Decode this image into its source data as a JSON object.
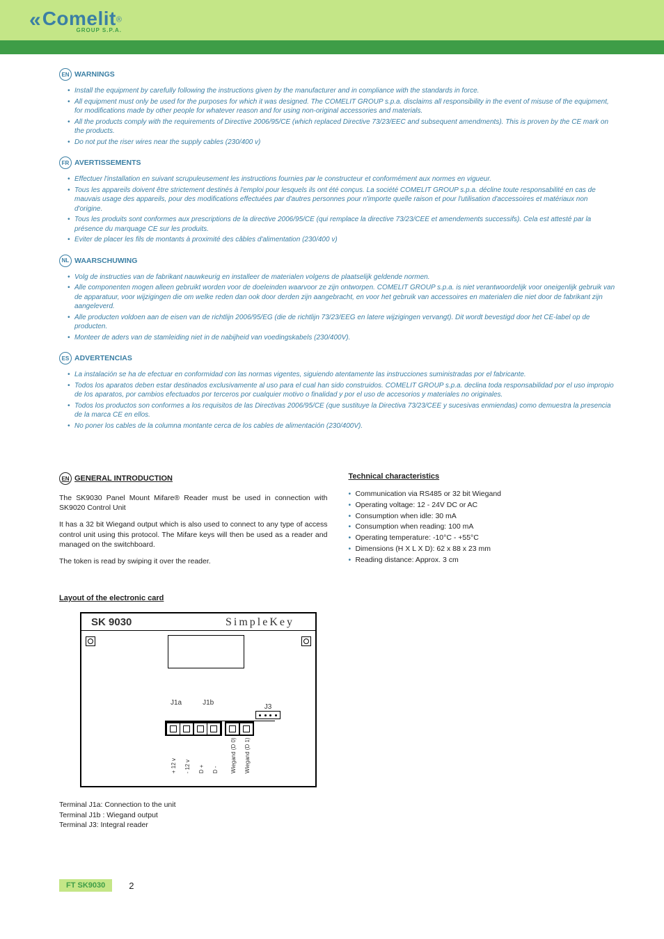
{
  "colors": {
    "header_bg": "#c4e687",
    "band": "#3e9d47",
    "brand": "#3b7fa4",
    "warn_text": "#3b7fa4",
    "footer_tag_bg": "#c4e687",
    "footer_tag_text": "#3e9d47"
  },
  "logo": {
    "main": "Comelit",
    "reg": "®",
    "sub": "GROUP S.P.A."
  },
  "warnings": [
    {
      "code": "EN",
      "title": "WARNINGS",
      "items": [
        "Install the equipment by carefully following the instructions given by the manufacturer and in compliance with the standards in force.",
        "All equipment must only be used for the purposes for which it was designed. The COMELIT GROUP s.p.a. disclaims all responsibility in the event of misuse of the equipment, for modifications made by other people for whatever reason and for using non-original accessories and materials.",
        "All the products comply with the requirements of Directive 2006/95/CE (which replaced Directive 73/23/EEC and subsequent amendments).  This is proven by the CE mark on the products.",
        "Do not put the riser wires near the supply cables (230/400 v)"
      ]
    },
    {
      "code": "FR",
      "title": "AVERTISSEMENTS",
      "items": [
        "Effectuer l'installation en suivant scrupuleusement les instructions fournies par le constructeur et conformément aux normes en vigueur.",
        "Tous les appareils doivent être strictement destinés à l'emploi pour lesquels ils ont été conçus. La société COMELIT GROUP s.p.a. décline toute responsabilité en cas de mauvais usage des appareils, pour des modifications effectuées par d'autres personnes pour n'importe quelle raison et pour l'utilisation d'accessoires et matériaux non d'origine.",
        "Tous les produits sont conformes aux prescriptions de la directive 2006/95/CE (qui remplace la directive 73/23/CEE et amendements successifs). Cela est attesté par la présence du marquage CE sur les produits.",
        "Eviter de placer les fils de montants à proximité des câbles d'alimentation (230/400 v)"
      ]
    },
    {
      "code": "NL",
      "title": "WAARSCHUWING",
      "items": [
        "Volg de instructies van de fabrikant nauwkeurig en installeer de materialen volgens de plaatselijk geldende normen.",
        "Alle componenten mogen alleen gebruikt worden voor de doeleinden waarvoor ze zijn ontworpen. COMELIT GROUP s.p.a. is niet verantwoordelijk voor oneigenlijk gebruik van de apparatuur, voor wijzigingen die om welke reden dan ook door derden zijn aangebracht, en voor het gebruik van accessoires en materialen die niet door de fabrikant zijn aangeleverd.",
        "Alle producten voldoen aan de eisen van de richtlijn 2006/95/EG (die de richtlijn 73/23/EEG en latere wijzigingen vervangt). Dit wordt bevestigd door het CE-label op de producten.",
        "Monteer de aders van de stamleiding niet in de nabijheid van voedingskabels (230/400V)."
      ]
    },
    {
      "code": "ES",
      "title": "ADVERTENCIAS",
      "items": [
        "La instalación se ha de efectuar en conformidad con las normas vigentes, siguiendo atentamente las instrucciones suministradas por el fabricante.",
        "Todos los aparatos deben estar destinados exclusivamente al uso para el cual han sido construidos. COMELIT GROUP s.p.a. declina toda responsabilidad por el uso impropio de los aparatos, por cambios efectuados por terceros por cualquier motivo o finalidad y por el uso de accesorios y materiales no originales.",
        "Todos los productos son conformes a los requisitos de las Directivas 2006/95/CE (que sustituye la Directiva 73/23/CEE y sucesivas enmiendas) como demuestra la presencia de la marca CE en ellos.",
        "No poner los cables de la columna montante cerca de los cables de alimentación (230/400V)."
      ]
    }
  ],
  "intro": {
    "code": "EN",
    "title": "GENERAL INTRODUCTION",
    "p1": "The SK9030 Panel Mount Mifare® Reader must be used in connection with SK9020 Control Unit",
    "p2": "It has a 32 bit Wiegand output which is also used to connect to any type of access control unit using this protocol. The Mifare keys will then be used as a reader and managed on the switchboard.",
    "p3": "The token is read by swiping it over the reader."
  },
  "tech": {
    "title": "Technical characteristics",
    "items": [
      "Communication via RS485 or 32 bit Wiegand",
      "Operating voltage: 12 - 24V DC or AC",
      "Consumption when idle: 30 mA",
      "Consumption when reading: 100 mA",
      "Operating temperature: -10°C - +55°C",
      "Dimensions (H X L X D): 62 x 88 x 23 mm",
      "Reading distance: Approx. 3 cm"
    ]
  },
  "layout": {
    "title": "Layout of the electronic card",
    "board": {
      "model": "SK 9030",
      "brand": "SimpleKey",
      "j1a": "J1a",
      "j1b": "J1b",
      "j3": "J3",
      "pins": [
        "+ 12 v",
        "- 12 v",
        "D +",
        "D -",
        "Wiegand (D 0)",
        "Wiegand (D 1)"
      ]
    },
    "terminals": [
      "Terminal J1a: Connection to the unit",
      "Terminal J1b : Wiegand output",
      "Terminal J3: Integral reader"
    ]
  },
  "footer": {
    "tag": "FT SK9030",
    "page": "2"
  }
}
